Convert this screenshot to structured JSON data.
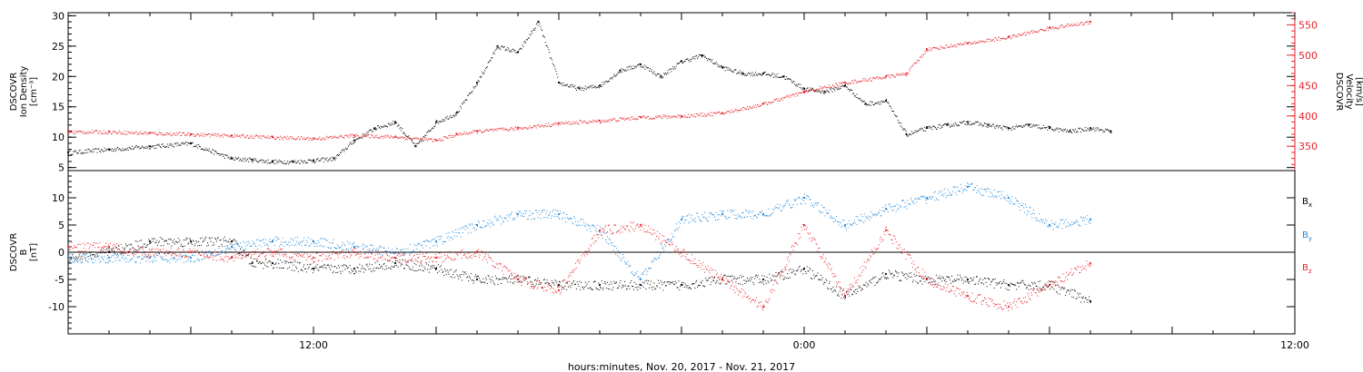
{
  "chart_data": [
    {
      "type": "scatter",
      "panel": "top",
      "x_unit": "hours since 00:00 Nov. 20, 2017",
      "left_axis": {
        "label_lines": [
          "DSCOVR",
          "Ion Density",
          "[cm⁻³]"
        ],
        "ylim": [
          4.5,
          30.5
        ],
        "ticks": [
          5,
          10,
          15,
          20,
          25,
          30
        ],
        "color": "#000000"
      },
      "right_axis": {
        "label_lines": [
          "DSCOVR",
          "Velocity",
          "[km/s]"
        ],
        "ylim": [
          310,
          570
        ],
        "ticks": [
          350,
          400,
          450,
          500,
          550
        ],
        "color": "#e8232a"
      },
      "series": [
        {
          "color": "#000000",
          "axis": "left",
          "x": [
            6,
            7,
            8,
            9,
            10,
            10.5,
            11,
            11.5,
            12,
            12.5,
            13,
            13.5,
            14,
            14.5,
            15,
            15.5,
            16,
            16.5,
            17,
            17.5,
            18,
            18.5,
            19,
            19.5,
            20,
            20.5,
            21,
            21.5,
            22,
            22.5,
            23,
            23.5,
            24,
            24.5,
            25,
            25.5,
            26,
            26.5,
            27,
            27.5,
            28,
            28.5,
            29,
            29.5,
            30,
            30.5,
            31,
            31.5
          ],
          "values": [
            7.5,
            8.0,
            8.5,
            9.0,
            6.5,
            6.3,
            6.0,
            6.0,
            6.2,
            6.5,
            9.5,
            11.5,
            12.5,
            8.5,
            12.5,
            14.0,
            19.0,
            25.0,
            24.0,
            29.0,
            19.0,
            18.0,
            18.5,
            21.0,
            22.0,
            20.0,
            22.5,
            23.5,
            21.5,
            20.5,
            20.5,
            20.0,
            18.0,
            17.5,
            18.5,
            15.5,
            16.0,
            10.5,
            11.5,
            12.0,
            12.5,
            12.0,
            11.5,
            12.0,
            11.5,
            11.0,
            11.5,
            11.0
          ]
        },
        {
          "color": "#e8232a",
          "axis": "right",
          "x": [
            6,
            7,
            8,
            9,
            10,
            11,
            12,
            13,
            14,
            15,
            15.5,
            16,
            17,
            18,
            19,
            20,
            21,
            22,
            23,
            24,
            25,
            26,
            26.5,
            27,
            28,
            29,
            30,
            31
          ],
          "values": [
            374,
            374,
            372,
            370,
            368,
            365,
            363,
            368,
            366,
            360,
            370,
            375,
            380,
            388,
            392,
            398,
            400,
            405,
            420,
            440,
            455,
            465,
            470,
            510,
            520,
            530,
            545,
            555
          ]
        }
      ]
    },
    {
      "type": "scatter",
      "panel": "bottom",
      "x_unit": "hours since 00:00 Nov. 20, 2017",
      "left_axis": {
        "label_lines": [
          "DSCOVR",
          "B",
          "[nT]"
        ],
        "ylim": [
          -15,
          15
        ],
        "ticks": [
          -10,
          -5,
          0,
          5,
          10
        ],
        "color": "#000000"
      },
      "zero_line": true,
      "series": [
        {
          "name": "B",
          "subscript": "x",
          "color": "#000000",
          "x": [
            6,
            7,
            8,
            9,
            10,
            10.5,
            11,
            12,
            13,
            14,
            15,
            16,
            17,
            18,
            19,
            20,
            21,
            22,
            23,
            24,
            25,
            26,
            27,
            28,
            29,
            30,
            31
          ],
          "values": [
            -1,
            0,
            2,
            2,
            2,
            -2,
            -2,
            -3,
            -3,
            -2,
            -3,
            -5,
            -5,
            -6,
            -6,
            -6,
            -6,
            -5,
            -5,
            -3,
            -8,
            -4,
            -5,
            -5,
            -6,
            -6,
            -9
          ]
        },
        {
          "name": "B",
          "subscript": "y",
          "color": "#1f87d8",
          "x": [
            6,
            7,
            8,
            9,
            10,
            11,
            12,
            13,
            14,
            15,
            16,
            17,
            18,
            19,
            20,
            21,
            22,
            23,
            24,
            25,
            26,
            27,
            28,
            29,
            30,
            31
          ],
          "values": [
            -1,
            -1,
            -1,
            -1,
            1,
            2,
            2,
            1,
            0,
            2,
            5,
            7,
            7,
            4,
            -5,
            6,
            7,
            7,
            10,
            5,
            8,
            10,
            12,
            10,
            5,
            6
          ]
        },
        {
          "name": "B",
          "subscript": "z",
          "color": "#e8232a",
          "x": [
            6,
            7,
            8,
            9,
            10,
            11,
            12,
            13,
            14,
            15,
            16,
            17,
            18,
            19,
            20,
            21,
            22,
            23,
            24,
            25,
            26,
            27,
            28,
            29,
            30,
            31
          ],
          "values": [
            1,
            1,
            0,
            0,
            -1,
            0,
            -1,
            0,
            -1,
            -1,
            0,
            -5,
            -7,
            4,
            5,
            0,
            -5,
            -10,
            5,
            -8,
            4,
            -5,
            -8,
            -10,
            -6,
            -2
          ]
        }
      ]
    }
  ],
  "x_axis": {
    "xlim": [
      6,
      36
    ],
    "tick_labels": [
      "12:00",
      "0:00",
      "12:00"
    ],
    "label": "hours:minutes, Nov. 20, 2017 - Nov. 21, 2017"
  },
  "legend": {
    "position": "right",
    "items": [
      {
        "text": "B",
        "sub": "x",
        "color": "#000000"
      },
      {
        "text": "B",
        "sub": "y",
        "color": "#1f87d8"
      },
      {
        "text": "B",
        "sub": "z",
        "color": "#e8232a"
      }
    ]
  }
}
